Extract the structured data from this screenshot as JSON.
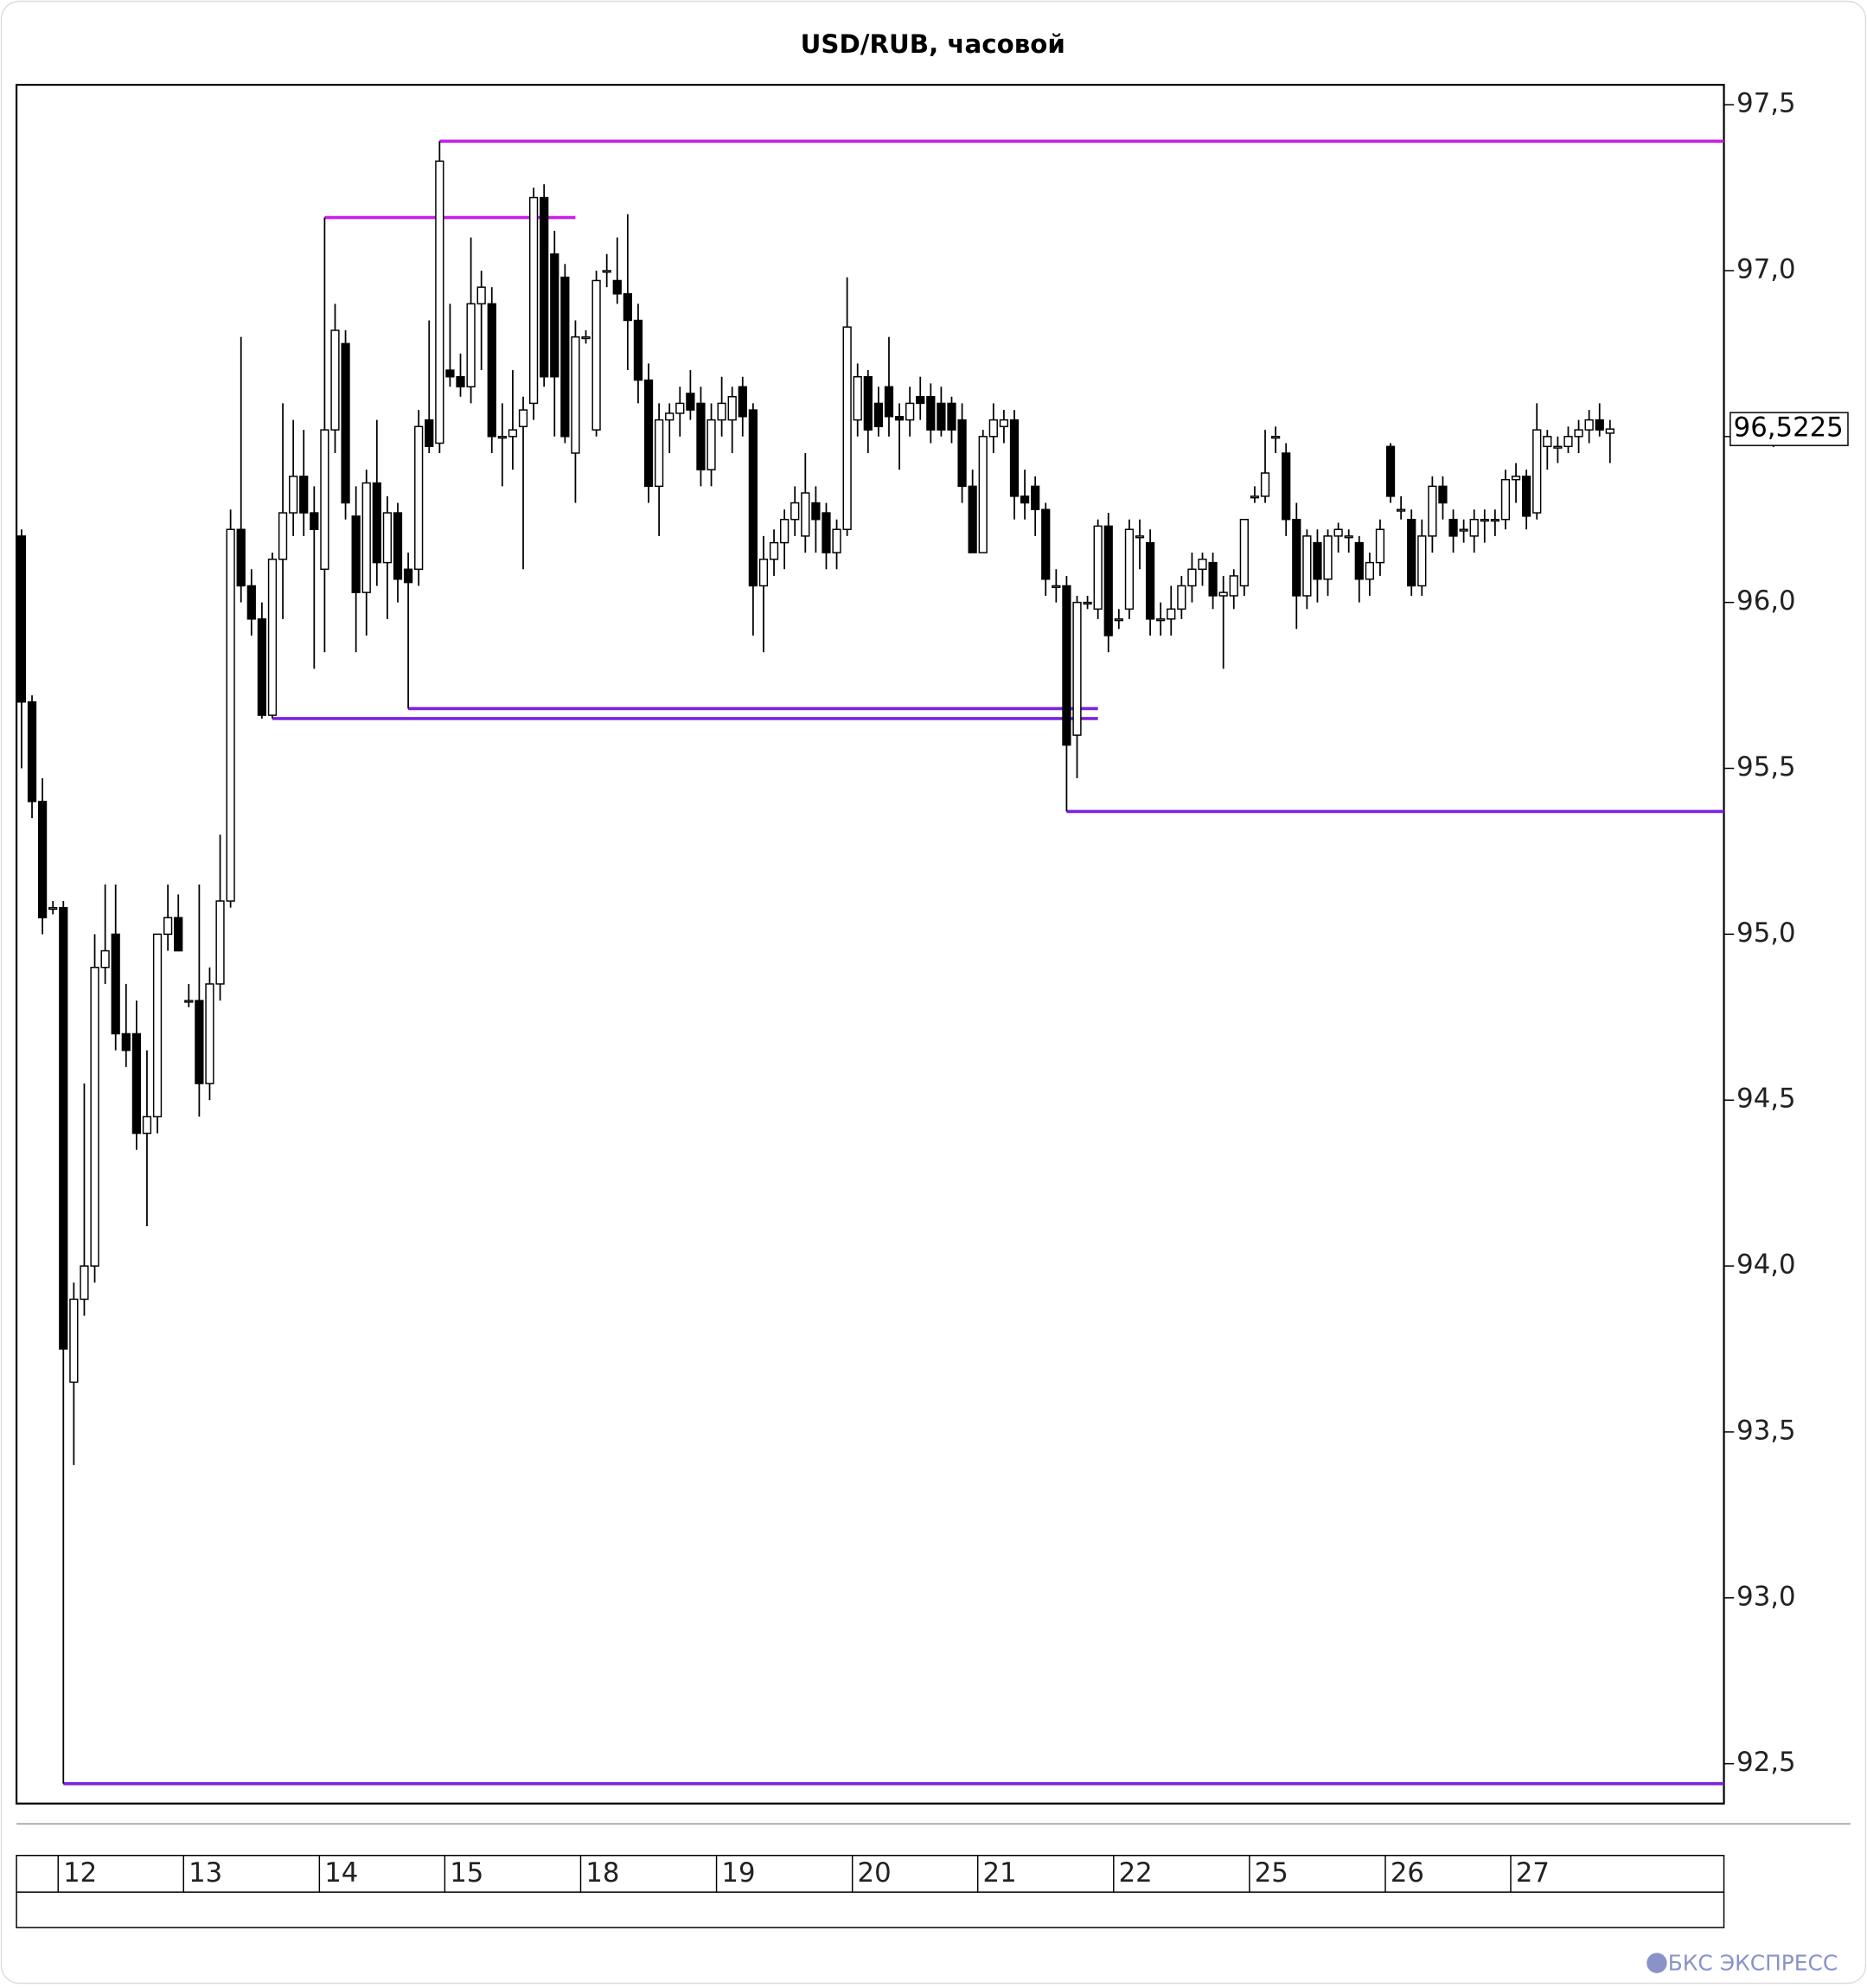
{
  "chart_data": {
    "type": "candlestick",
    "title": "USD/RUB, часовой",
    "categories": [
      null,
      null,
      null,
      null,
      "12",
      null,
      null,
      null,
      null,
      null,
      null,
      null,
      null,
      null,
      null,
      null,
      "13",
      null,
      null,
      null,
      null,
      null,
      null,
      null,
      null,
      null,
      null,
      null,
      null,
      "14",
      null,
      null,
      null,
      null,
      null,
      null,
      null,
      null,
      null,
      null,
      null,
      "15",
      null,
      null,
      null,
      null,
      null,
      null,
      null,
      null,
      null,
      null,
      null,
      null,
      "18",
      null,
      null,
      null,
      null,
      null,
      null,
      null,
      null,
      null,
      null,
      null,
      null,
      "19",
      null,
      null,
      null,
      null,
      null,
      null,
      null,
      null,
      null,
      null,
      null,
      null,
      "20",
      null,
      null,
      null,
      null,
      null,
      null,
      null,
      null,
      null,
      null,
      null,
      "21",
      null,
      null,
      null,
      null,
      null,
      null,
      null,
      null,
      null,
      null,
      null,
      null,
      "22",
      null,
      null,
      null,
      null,
      null,
      null,
      null,
      null,
      null,
      null,
      null,
      null,
      "25",
      null,
      null,
      null,
      null,
      null,
      null,
      null,
      null,
      null,
      null,
      null,
      null,
      "26",
      null,
      null,
      null,
      null,
      null,
      null,
      null,
      null,
      null,
      null,
      null,
      "27",
      null,
      null,
      null,
      null,
      null,
      null,
      null,
      null,
      null
    ],
    "ohlc": [
      [
        96.2,
        96.22,
        95.5,
        95.7
      ],
      [
        95.7,
        95.72,
        95.35,
        95.4
      ],
      [
        95.4,
        95.47,
        95.0,
        95.05
      ],
      [
        95.08,
        95.1,
        95.06,
        95.08
      ],
      [
        95.08,
        95.1,
        92.44,
        93.75
      ],
      [
        93.65,
        93.95,
        93.4,
        93.9
      ],
      [
        93.9,
        94.55,
        93.85,
        94.0
      ],
      [
        94.0,
        95.0,
        93.95,
        94.9
      ],
      [
        94.9,
        95.15,
        94.85,
        94.95
      ],
      [
        95.0,
        95.15,
        94.65,
        94.7
      ],
      [
        94.7,
        94.85,
        94.6,
        94.65
      ],
      [
        94.7,
        94.8,
        94.35,
        94.4
      ],
      [
        94.4,
        94.65,
        94.12,
        94.45
      ],
      [
        94.45,
        95.0,
        94.4,
        95.0
      ],
      [
        95.0,
        95.15,
        94.95,
        95.05
      ],
      [
        95.05,
        95.12,
        94.95,
        94.95
      ],
      [
        94.8,
        94.85,
        94.78,
        94.8
      ],
      [
        94.8,
        95.15,
        94.45,
        94.55
      ],
      [
        94.55,
        94.9,
        94.5,
        94.85
      ],
      [
        94.85,
        95.3,
        94.8,
        95.1
      ],
      [
        95.1,
        96.28,
        95.08,
        96.22
      ],
      [
        96.22,
        96.8,
        96.0,
        96.05
      ],
      [
        96.05,
        96.1,
        95.9,
        95.95
      ],
      [
        95.95,
        96.0,
        95.65,
        95.66
      ],
      [
        95.66,
        96.15,
        95.65,
        96.13
      ],
      [
        96.13,
        96.6,
        95.95,
        96.27
      ],
      [
        96.27,
        96.55,
        96.2,
        96.38
      ],
      [
        96.38,
        96.52,
        96.2,
        96.27
      ],
      [
        96.27,
        96.35,
        95.8,
        96.22
      ],
      [
        96.1,
        97.16,
        95.85,
        96.52
      ],
      [
        96.52,
        96.9,
        96.45,
        96.82
      ],
      [
        96.78,
        96.82,
        96.25,
        96.3
      ],
      [
        96.26,
        96.35,
        95.85,
        96.03
      ],
      [
        96.03,
        96.4,
        95.9,
        96.36
      ],
      [
        96.36,
        96.55,
        96.05,
        96.12
      ],
      [
        96.12,
        96.32,
        95.95,
        96.27
      ],
      [
        96.27,
        96.3,
        96.0,
        96.07
      ],
      [
        96.1,
        96.15,
        95.68,
        96.06
      ],
      [
        96.1,
        96.58,
        96.05,
        96.53
      ],
      [
        96.55,
        96.85,
        96.45,
        96.47
      ],
      [
        96.48,
        97.39,
        96.45,
        97.33
      ],
      [
        96.7,
        96.9,
        96.65,
        96.68
      ],
      [
        96.68,
        96.75,
        96.62,
        96.65
      ],
      [
        96.65,
        97.1,
        96.6,
        96.9
      ],
      [
        96.9,
        97.0,
        96.7,
        96.95
      ],
      [
        96.9,
        96.95,
        96.45,
        96.5
      ],
      [
        96.5,
        96.6,
        96.35,
        96.5
      ],
      [
        96.5,
        96.7,
        96.4,
        96.52
      ],
      [
        96.53,
        96.62,
        96.1,
        96.58
      ],
      [
        96.6,
        97.25,
        96.55,
        97.22
      ],
      [
        97.22,
        97.26,
        96.65,
        96.68
      ],
      [
        97.05,
        97.12,
        96.5,
        96.68
      ],
      [
        96.98,
        97.02,
        96.48,
        96.5
      ],
      [
        96.45,
        96.85,
        96.3,
        96.8
      ],
      [
        96.8,
        96.82,
        96.78,
        96.8
      ],
      [
        96.52,
        97.0,
        96.5,
        96.97
      ],
      [
        97.0,
        97.05,
        96.95,
        97.0
      ],
      [
        96.97,
        97.1,
        96.9,
        96.93
      ],
      [
        96.93,
        97.17,
        96.7,
        96.85
      ],
      [
        96.85,
        96.9,
        96.6,
        96.67
      ],
      [
        96.67,
        96.72,
        96.3,
        96.35
      ],
      [
        96.35,
        96.6,
        96.2,
        96.55
      ],
      [
        96.55,
        96.6,
        96.45,
        96.57
      ],
      [
        96.57,
        96.65,
        96.5,
        96.6
      ],
      [
        96.63,
        96.7,
        96.55,
        96.58
      ],
      [
        96.6,
        96.65,
        96.35,
        96.4
      ],
      [
        96.4,
        96.6,
        96.35,
        96.55
      ],
      [
        96.55,
        96.68,
        96.5,
        96.6
      ],
      [
        96.55,
        96.65,
        96.45,
        96.62
      ],
      [
        96.65,
        96.68,
        96.5,
        96.56
      ],
      [
        96.58,
        96.6,
        95.9,
        96.05
      ],
      [
        96.05,
        96.2,
        95.85,
        96.13
      ],
      [
        96.13,
        96.22,
        96.08,
        96.18
      ],
      [
        96.18,
        96.28,
        96.1,
        96.25
      ],
      [
        96.25,
        96.35,
        96.2,
        96.3
      ],
      [
        96.2,
        96.45,
        96.15,
        96.33
      ],
      [
        96.3,
        96.35,
        96.15,
        96.25
      ],
      [
        96.27,
        96.3,
        96.1,
        96.15
      ],
      [
        96.15,
        96.25,
        96.1,
        96.22
      ],
      [
        96.22,
        96.98,
        96.2,
        96.83
      ],
      [
        96.55,
        96.72,
        96.5,
        96.68
      ],
      [
        96.68,
        96.7,
        96.45,
        96.52
      ],
      [
        96.6,
        96.65,
        96.5,
        96.53
      ],
      [
        96.65,
        96.8,
        96.5,
        96.56
      ],
      [
        96.56,
        96.6,
        96.4,
        96.55
      ],
      [
        96.55,
        96.65,
        96.5,
        96.6
      ],
      [
        96.62,
        96.68,
        96.55,
        96.6
      ],
      [
        96.62,
        96.66,
        96.48,
        96.52
      ],
      [
        96.6,
        96.65,
        96.5,
        96.52
      ],
      [
        96.6,
        96.62,
        96.48,
        96.52
      ],
      [
        96.55,
        96.6,
        96.3,
        96.35
      ],
      [
        96.35,
        96.4,
        96.15,
        96.15
      ],
      [
        96.15,
        96.52,
        96.15,
        96.5
      ],
      [
        96.5,
        96.6,
        96.45,
        96.55
      ],
      [
        96.53,
        96.58,
        96.48,
        96.55
      ],
      [
        96.55,
        96.58,
        96.25,
        96.32
      ],
      [
        96.32,
        96.4,
        96.25,
        96.3
      ],
      [
        96.35,
        96.38,
        96.2,
        96.28
      ],
      [
        96.28,
        96.3,
        96.02,
        96.07
      ],
      [
        96.05,
        96.1,
        96.0,
        96.05
      ],
      [
        96.05,
        96.08,
        95.37,
        95.57
      ],
      [
        95.6,
        96.02,
        95.47,
        96.0
      ],
      [
        96.0,
        96.02,
        95.98,
        96.0
      ],
      [
        95.98,
        96.25,
        95.95,
        96.23
      ],
      [
        96.23,
        96.27,
        95.85,
        95.9
      ],
      [
        95.95,
        95.98,
        95.92,
        95.95
      ],
      [
        95.98,
        96.25,
        95.95,
        96.22
      ],
      [
        96.2,
        96.25,
        96.1,
        96.2
      ],
      [
        96.18,
        96.22,
        95.9,
        95.95
      ],
      [
        95.95,
        96.0,
        95.9,
        95.95
      ],
      [
        95.95,
        96.05,
        95.9,
        95.98
      ],
      [
        95.98,
        96.08,
        95.95,
        96.05
      ],
      [
        96.05,
        96.15,
        96.0,
        96.1
      ],
      [
        96.1,
        96.15,
        96.05,
        96.13
      ],
      [
        96.12,
        96.15,
        95.98,
        96.02
      ],
      [
        96.02,
        96.08,
        95.8,
        96.03
      ],
      [
        96.02,
        96.1,
        95.98,
        96.08
      ],
      [
        96.05,
        96.25,
        96.02,
        96.25
      ],
      [
        96.32,
        96.35,
        96.3,
        96.32
      ],
      [
        96.32,
        96.52,
        96.3,
        96.39
      ],
      [
        96.5,
        96.53,
        96.45,
        96.5
      ],
      [
        96.45,
        96.48,
        96.2,
        96.25
      ],
      [
        96.25,
        96.3,
        95.92,
        96.02
      ],
      [
        96.02,
        96.22,
        95.98,
        96.2
      ],
      [
        96.18,
        96.22,
        96.0,
        96.07
      ],
      [
        96.07,
        96.22,
        96.02,
        96.2
      ],
      [
        96.2,
        96.24,
        96.15,
        96.22
      ],
      [
        96.2,
        96.22,
        96.15,
        96.2
      ],
      [
        96.18,
        96.2,
        96.0,
        96.07
      ],
      [
        96.07,
        96.15,
        96.02,
        96.12
      ],
      [
        96.12,
        96.25,
        96.08,
        96.22
      ],
      [
        96.47,
        96.48,
        96.3,
        96.32
      ],
      [
        96.28,
        96.32,
        96.25,
        96.28
      ],
      [
        96.25,
        96.28,
        96.02,
        96.05
      ],
      [
        96.05,
        96.25,
        96.02,
        96.2
      ],
      [
        96.2,
        96.38,
        96.15,
        96.35
      ],
      [
        96.35,
        96.38,
        96.25,
        96.3
      ],
      [
        96.25,
        96.28,
        96.15,
        96.2
      ],
      [
        96.22,
        96.25,
        96.18,
        96.22
      ],
      [
        96.2,
        96.28,
        96.15,
        96.25
      ],
      [
        96.25,
        96.28,
        96.18,
        96.25
      ],
      [
        96.25,
        96.28,
        96.2,
        96.25
      ],
      [
        96.25,
        96.4,
        96.22,
        96.37
      ],
      [
        96.37,
        96.42,
        96.3,
        96.38
      ],
      [
        96.38,
        96.4,
        96.22,
        96.26
      ],
      [
        96.27,
        96.6,
        96.25,
        96.52
      ],
      [
        96.47,
        96.52,
        96.4,
        96.5
      ],
      [
        96.47,
        96.5,
        96.42,
        96.47
      ],
      [
        96.47,
        96.53,
        96.45,
        96.5
      ],
      [
        96.5,
        96.55,
        96.45,
        96.52
      ],
      [
        96.52,
        96.58,
        96.48,
        96.55
      ],
      [
        96.55,
        96.6,
        96.5,
        96.52
      ],
      [
        96.51,
        96.55,
        96.42,
        96.5225
      ]
    ],
    "ylim": [
      92.38,
      97.56
    ],
    "yticks": [
      {
        "value": 92.5,
        "label": "92,5"
      },
      {
        "value": 93,
        "label": "93,0"
      },
      {
        "value": 93.5,
        "label": "93,5"
      },
      {
        "value": 94,
        "label": "94,0"
      },
      {
        "value": 94.5,
        "label": "94,5"
      },
      {
        "value": 95,
        "label": "95,0"
      },
      {
        "value": 95.5,
        "label": "95,5"
      },
      {
        "value": 96,
        "label": "96,0"
      },
      {
        "value": 96.5,
        "label": "96,5"
      },
      {
        "value": 97,
        "label": "97,0"
      },
      {
        "value": 97.5,
        "label": "97,5"
      }
    ],
    "last_price": {
      "value": 96.5225,
      "label": "96,5225"
    },
    "levels": [
      {
        "value": 97.39,
        "from": 40,
        "color": "#c81ee6"
      },
      {
        "value": 97.16,
        "from": 29,
        "to": 53,
        "color": "#c81ee6"
      },
      {
        "value": 95.68,
        "from": 37,
        "to": 103,
        "color": "#7b22e0"
      },
      {
        "value": 95.65,
        "from": 24,
        "to": 103,
        "color": "#7b22e0"
      },
      {
        "value": 95.37,
        "from": 100,
        "color": "#7b22e0"
      },
      {
        "value": 92.44,
        "from": 4,
        "color": "#7b22e0"
      }
    ],
    "up_color": "#ffffff",
    "down_color": "#000000",
    "logo": "БКС ЭКСПРЕСС"
  }
}
